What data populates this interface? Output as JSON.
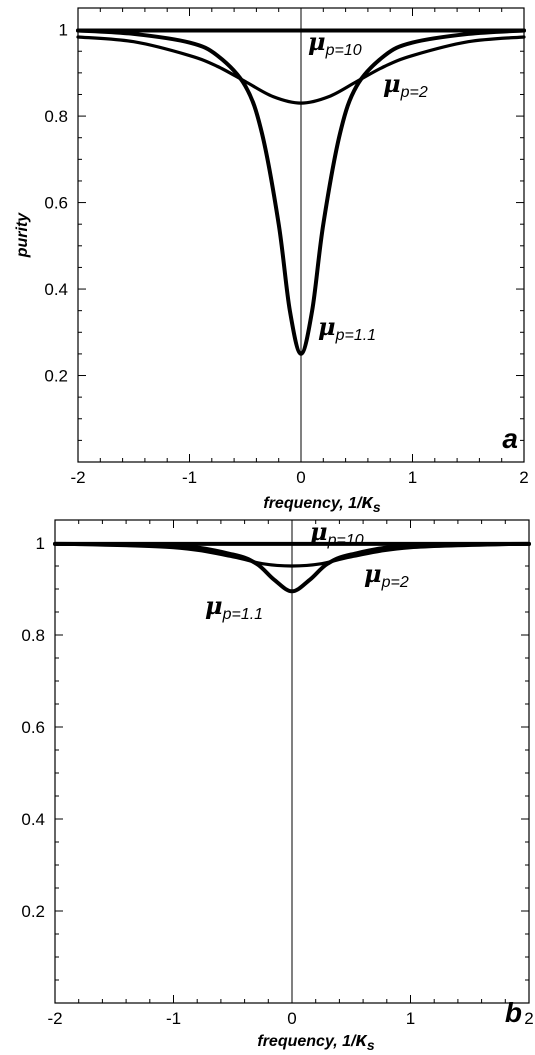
{
  "chart_data": [
    {
      "type": "line",
      "panel_label": "a",
      "xlabel": "frequency, 1/",
      "xlabel_symbol": "κ",
      "xlabel_sub": "s",
      "ylabel": "purity",
      "xlim": [
        -2,
        2
      ],
      "ylim": [
        0,
        1.05
      ],
      "x_ticks": [
        -2,
        -1,
        0,
        1,
        2
      ],
      "y_ticks": [
        0.2,
        0.4,
        0.6,
        0.8,
        1
      ],
      "x_tick_labels": [
        "-2",
        "-1",
        "0",
        "1",
        "2"
      ],
      "y_tick_labels": [
        "0.2",
        "0.4",
        "0.6",
        "0.8",
        "1"
      ],
      "grid": false,
      "series": [
        {
          "name": "μp=10",
          "label_symbol": "μ",
          "label_sub": "p=10",
          "x": [
            -2,
            -1.5,
            -1,
            -0.5,
            0,
            0.5,
            1,
            1.5,
            2
          ],
          "y": [
            0.998,
            0.998,
            0.998,
            0.998,
            0.998,
            0.998,
            0.998,
            0.998,
            0.998
          ]
        },
        {
          "name": "μp=2",
          "label_symbol": "μ",
          "label_sub": "p=2",
          "x": [
            -2,
            -1.5,
            -1,
            -0.75,
            -0.5,
            -0.25,
            0,
            0.25,
            0.5,
            0.75,
            1,
            1.5,
            2
          ],
          "y": [
            0.983,
            0.972,
            0.94,
            0.915,
            0.88,
            0.845,
            0.83,
            0.845,
            0.88,
            0.915,
            0.94,
            0.972,
            0.983
          ]
        },
        {
          "name": "μp=1.1",
          "label_symbol": "μ",
          "label_sub": "p=1.1",
          "x": [
            -2,
            -1.5,
            -1,
            -0.75,
            -0.5,
            -0.35,
            -0.2,
            -0.1,
            0,
            0.1,
            0.2,
            0.35,
            0.5,
            0.75,
            1,
            1.5,
            2
          ],
          "y": [
            0.998,
            0.99,
            0.97,
            0.94,
            0.87,
            0.76,
            0.55,
            0.35,
            0.25,
            0.35,
            0.55,
            0.76,
            0.87,
            0.94,
            0.97,
            0.99,
            0.998
          ]
        }
      ]
    },
    {
      "type": "line",
      "panel_label": "b",
      "xlabel": "frequency, 1/",
      "xlabel_symbol": "κ",
      "xlabel_sub": "s",
      "ylabel": "",
      "xlim": [
        -2,
        2
      ],
      "ylim": [
        0,
        1.05
      ],
      "x_ticks": [
        -2,
        -1,
        0,
        1,
        2
      ],
      "y_ticks": [
        0.2,
        0.4,
        0.6,
        0.8,
        1
      ],
      "x_tick_labels": [
        "-2",
        "-1",
        "0",
        "1",
        "2"
      ],
      "y_tick_labels": [
        "0.2",
        "0.4",
        "0.6",
        "0.8",
        "1"
      ],
      "grid": false,
      "series": [
        {
          "name": "μp=10",
          "label_symbol": "μ",
          "label_sub": "p=10",
          "x": [
            -2,
            -1,
            0,
            1,
            2
          ],
          "y": [
            0.998,
            0.998,
            0.998,
            0.998,
            0.998
          ]
        },
        {
          "name": "μp=2",
          "label_symbol": "μ",
          "label_sub": "p=2",
          "x": [
            -2,
            -1,
            -0.5,
            -0.25,
            0,
            0.25,
            0.5,
            1,
            2
          ],
          "y": [
            0.998,
            0.99,
            0.97,
            0.955,
            0.95,
            0.955,
            0.97,
            0.99,
            0.998
          ]
        },
        {
          "name": "μp=1.1",
          "label_symbol": "μ",
          "label_sub": "p=1.1",
          "x": [
            -2,
            -1,
            -0.5,
            -0.3,
            -0.15,
            0,
            0.15,
            0.3,
            0.5,
            1,
            2
          ],
          "y": [
            0.998,
            0.995,
            0.975,
            0.955,
            0.92,
            0.895,
            0.92,
            0.955,
            0.975,
            0.995,
            0.998
          ]
        }
      ]
    }
  ]
}
